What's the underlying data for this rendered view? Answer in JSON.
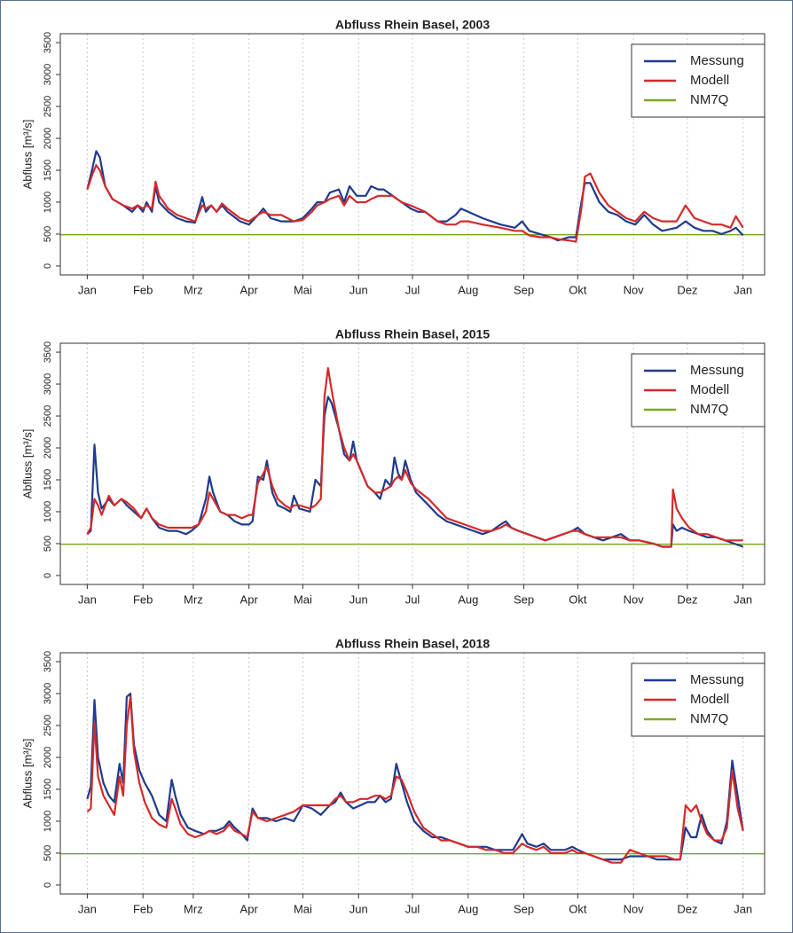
{
  "chart_data": [
    {
      "type": "line",
      "title": "Abfluss Rhein Basel, 2003",
      "ylabel": "Abfluss [m³/s]",
      "xlim": [
        -15,
        377
      ],
      "ylim": [
        -140,
        3640
      ],
      "xticks": [
        {
          "value": 0,
          "label": "Jan"
        },
        {
          "value": 31,
          "label": "Feb"
        },
        {
          "value": 59,
          "label": "Mrz"
        },
        {
          "value": 90,
          "label": "Apr"
        },
        {
          "value": 120,
          "label": "Mai"
        },
        {
          "value": 151,
          "label": "Jun"
        },
        {
          "value": 181,
          "label": "Jul"
        },
        {
          "value": 212,
          "label": "Aug"
        },
        {
          "value": 243,
          "label": "Sep"
        },
        {
          "value": 273,
          "label": "Okt"
        },
        {
          "value": 304,
          "label": "Nov"
        },
        {
          "value": 334,
          "label": "Dez"
        },
        {
          "value": 365,
          "label": "Jan"
        }
      ],
      "yticks": [
        0,
        500,
        1000,
        1500,
        2000,
        2500,
        3000,
        3500
      ],
      "grid": true,
      "legend": "top-right",
      "x": [
        0,
        3,
        5,
        7,
        10,
        14,
        20,
        25,
        28,
        31,
        33,
        36,
        38,
        40,
        45,
        50,
        55,
        60,
        64,
        66,
        69,
        72,
        75,
        78,
        85,
        90,
        95,
        98,
        102,
        108,
        115,
        120,
        125,
        128,
        132,
        135,
        140,
        143,
        146,
        150,
        155,
        158,
        162,
        165,
        170,
        175,
        180,
        184,
        188,
        195,
        200,
        205,
        208,
        212,
        220,
        230,
        238,
        242,
        246,
        252,
        258,
        262,
        268,
        272,
        275,
        277,
        280,
        285,
        290,
        295,
        300,
        305,
        310,
        315,
        320,
        328,
        333,
        338,
        343,
        348,
        353,
        358,
        361,
        365
      ],
      "series": [
        {
          "name": "Messung",
          "color": "#1f3b8c",
          "values": [
            1200,
            1550,
            1800,
            1700,
            1250,
            1050,
            950,
            850,
            950,
            850,
            1000,
            850,
            1250,
            1000,
            850,
            750,
            700,
            680,
            1080,
            850,
            950,
            850,
            950,
            850,
            700,
            650,
            800,
            900,
            750,
            700,
            700,
            750,
            900,
            1000,
            1000,
            1150,
            1200,
            1000,
            1250,
            1100,
            1100,
            1250,
            1200,
            1200,
            1100,
            1000,
            900,
            850,
            850,
            700,
            700,
            800,
            900,
            850,
            750,
            650,
            600,
            700,
            550,
            500,
            450,
            400,
            450,
            450,
            1000,
            1300,
            1300,
            1000,
            850,
            800,
            700,
            650,
            800,
            650,
            550,
            600,
            700,
            600,
            550,
            550,
            500,
            550,
            600,
            480
          ]
        },
        {
          "name": "Modell",
          "color": "#d42a2a",
          "values": [
            1200,
            1450,
            1580,
            1500,
            1250,
            1050,
            950,
            900,
            950,
            900,
            950,
            900,
            1320,
            1100,
            900,
            800,
            750,
            700,
            950,
            900,
            950,
            850,
            980,
            900,
            750,
            700,
            800,
            850,
            800,
            800,
            700,
            720,
            850,
            950,
            1000,
            1050,
            1100,
            950,
            1100,
            1000,
            1000,
            1050,
            1100,
            1100,
            1100,
            1000,
            950,
            900,
            850,
            700,
            650,
            650,
            700,
            700,
            650,
            600,
            550,
            550,
            480,
            450,
            450,
            420,
            400,
            380,
            900,
            1400,
            1450,
            1150,
            950,
            850,
            750,
            700,
            850,
            750,
            700,
            700,
            950,
            750,
            700,
            650,
            650,
            600,
            780,
            600
          ]
        }
      ],
      "hline": {
        "name": "NM7Q",
        "color": "#7aaa24",
        "value": 490
      }
    },
    {
      "type": "line",
      "title": "Abfluss Rhein Basel, 2015",
      "ylabel": "Abfluss [m³/s]",
      "xlim": [
        -15,
        377
      ],
      "ylim": [
        -140,
        3640
      ],
      "xticks": [
        {
          "value": 0,
          "label": "Jan"
        },
        {
          "value": 31,
          "label": "Feb"
        },
        {
          "value": 59,
          "label": "Mrz"
        },
        {
          "value": 90,
          "label": "Apr"
        },
        {
          "value": 120,
          "label": "Mai"
        },
        {
          "value": 151,
          "label": "Jun"
        },
        {
          "value": 181,
          "label": "Jul"
        },
        {
          "value": 212,
          "label": "Aug"
        },
        {
          "value": 243,
          "label": "Sep"
        },
        {
          "value": 273,
          "label": "Okt"
        },
        {
          "value": 304,
          "label": "Nov"
        },
        {
          "value": 334,
          "label": "Dez"
        },
        {
          "value": 365,
          "label": "Jan"
        }
      ],
      "yticks": [
        0,
        500,
        1000,
        1500,
        2000,
        2500,
        3000,
        3500
      ],
      "grid": true,
      "legend": "top-right",
      "x": [
        0,
        2,
        4,
        6,
        8,
        12,
        15,
        19,
        22,
        26,
        30,
        33,
        36,
        40,
        45,
        50,
        55,
        58,
        62,
        66,
        68,
        70,
        74,
        78,
        82,
        86,
        90,
        92,
        95,
        98,
        100,
        103,
        106,
        110,
        113,
        115,
        118,
        124,
        127,
        130,
        132,
        134,
        136,
        140,
        143,
        146,
        148,
        150,
        153,
        156,
        160,
        163,
        166,
        169,
        171,
        173,
        175,
        177,
        180,
        183,
        190,
        195,
        200,
        205,
        210,
        215,
        220,
        225,
        230,
        233,
        236,
        240,
        245,
        250,
        255,
        260,
        265,
        270,
        273,
        277,
        282,
        287,
        292,
        297,
        302,
        307,
        315,
        320,
        325,
        326,
        328,
        331,
        335,
        340,
        345,
        350,
        355,
        360,
        365
      ],
      "series": [
        {
          "name": "Messung",
          "color": "#1f3b8c",
          "values": [
            650,
            700,
            2050,
            1300,
            1050,
            1200,
            1100,
            1200,
            1100,
            1000,
            900,
            1050,
            900,
            750,
            700,
            700,
            650,
            700,
            800,
            1200,
            1550,
            1300,
            1000,
            950,
            850,
            800,
            800,
            850,
            1550,
            1500,
            1800,
            1300,
            1100,
            1050,
            1000,
            1250,
            1050,
            1000,
            1500,
            1400,
            2500,
            2800,
            2700,
            2300,
            1900,
            1800,
            2100,
            1800,
            1600,
            1400,
            1300,
            1200,
            1500,
            1400,
            1850,
            1600,
            1500,
            1800,
            1500,
            1300,
            1100,
            950,
            850,
            800,
            750,
            700,
            650,
            700,
            800,
            850,
            750,
            700,
            650,
            600,
            550,
            600,
            650,
            700,
            750,
            650,
            600,
            550,
            600,
            650,
            550,
            550,
            500,
            450,
            450,
            800,
            700,
            750,
            700,
            650,
            600,
            600,
            550,
            500,
            450
          ]
        },
        {
          "name": "Modell",
          "color": "#d42a2a",
          "values": [
            650,
            750,
            1200,
            1100,
            950,
            1250,
            1100,
            1200,
            1150,
            1050,
            900,
            1050,
            900,
            800,
            750,
            750,
            750,
            750,
            800,
            1000,
            1300,
            1200,
            1000,
            950,
            950,
            900,
            950,
            950,
            1450,
            1600,
            1700,
            1400,
            1200,
            1100,
            1050,
            1100,
            1100,
            1050,
            1100,
            1200,
            2800,
            3250,
            2900,
            2300,
            2000,
            1800,
            1900,
            1800,
            1600,
            1400,
            1300,
            1300,
            1350,
            1400,
            1500,
            1550,
            1500,
            1650,
            1450,
            1350,
            1200,
            1050,
            900,
            850,
            800,
            750,
            700,
            700,
            750,
            800,
            750,
            700,
            650,
            600,
            550,
            600,
            650,
            700,
            700,
            650,
            600,
            600,
            600,
            600,
            550,
            550,
            500,
            450,
            450,
            1350,
            1050,
            900,
            750,
            650,
            650,
            600,
            550,
            550,
            550
          ]
        }
      ],
      "hline": {
        "name": "NM7Q",
        "color": "#7aaa24",
        "value": 490
      }
    },
    {
      "type": "line",
      "title": "Abfluss Rhein Basel, 2018",
      "ylabel": "Abfluss [m³/s]",
      "xlim": [
        -15,
        377
      ],
      "ylim": [
        -140,
        3640
      ],
      "xticks": [
        {
          "value": 0,
          "label": "Jan"
        },
        {
          "value": 31,
          "label": "Feb"
        },
        {
          "value": 59,
          "label": "Mrz"
        },
        {
          "value": 90,
          "label": "Apr"
        },
        {
          "value": 120,
          "label": "Mai"
        },
        {
          "value": 151,
          "label": "Jun"
        },
        {
          "value": 181,
          "label": "Jul"
        },
        {
          "value": 212,
          "label": "Aug"
        },
        {
          "value": 243,
          "label": "Sep"
        },
        {
          "value": 273,
          "label": "Okt"
        },
        {
          "value": 304,
          "label": "Nov"
        },
        {
          "value": 334,
          "label": "Dez"
        },
        {
          "value": 365,
          "label": "Jan"
        }
      ],
      "yticks": [
        0,
        500,
        1000,
        1500,
        2000,
        2500,
        3000,
        3500
      ],
      "grid": true,
      "legend": "top-right",
      "x": [
        0,
        2,
        4,
        6,
        9,
        12,
        15,
        18,
        20,
        22,
        24,
        26,
        29,
        32,
        36,
        40,
        44,
        47,
        49,
        52,
        56,
        60,
        65,
        68,
        72,
        76,
        79,
        82,
        86,
        89,
        92,
        95,
        100,
        105,
        110,
        115,
        120,
        125,
        130,
        135,
        138,
        141,
        144,
        148,
        152,
        156,
        160,
        163,
        166,
        169,
        172,
        175,
        178,
        182,
        187,
        192,
        197,
        202,
        207,
        212,
        217,
        222,
        227,
        232,
        237,
        242,
        245,
        250,
        254,
        258,
        262,
        266,
        270,
        273,
        277,
        282,
        287,
        292,
        297,
        302,
        307,
        312,
        317,
        322,
        327,
        330,
        333,
        336,
        339,
        342,
        345,
        349,
        353,
        356,
        359,
        362,
        365
      ],
      "series": [
        {
          "name": "Messung",
          "color": "#1f3b8c",
          "values": [
            1350,
            1550,
            2900,
            2000,
            1600,
            1400,
            1300,
            1900,
            1600,
            2950,
            3000,
            2200,
            1800,
            1600,
            1400,
            1100,
            1000,
            1650,
            1400,
            1100,
            900,
            850,
            800,
            850,
            850,
            900,
            1000,
            900,
            800,
            700,
            1200,
            1050,
            1050,
            1000,
            1050,
            1000,
            1250,
            1200,
            1100,
            1250,
            1300,
            1450,
            1300,
            1200,
            1250,
            1300,
            1300,
            1400,
            1300,
            1350,
            1900,
            1600,
            1300,
            1000,
            850,
            750,
            750,
            700,
            650,
            600,
            600,
            600,
            550,
            550,
            550,
            800,
            650,
            600,
            650,
            550,
            550,
            550,
            600,
            550,
            500,
            450,
            400,
            400,
            400,
            450,
            450,
            450,
            400,
            400,
            400,
            400,
            900,
            750,
            750,
            1100,
            850,
            700,
            650,
            1000,
            1950,
            1400,
            850
          ]
        },
        {
          "name": "Modell",
          "color": "#d42a2a",
          "values": [
            1150,
            1200,
            2550,
            1700,
            1400,
            1250,
            1100,
            1700,
            1400,
            2500,
            2950,
            2100,
            1600,
            1300,
            1050,
            950,
            900,
            1350,
            1200,
            950,
            800,
            750,
            800,
            850,
            800,
            850,
            950,
            850,
            800,
            750,
            1150,
            1050,
            1000,
            1050,
            1100,
            1150,
            1250,
            1250,
            1250,
            1250,
            1350,
            1400,
            1300,
            1300,
            1350,
            1350,
            1400,
            1400,
            1350,
            1400,
            1700,
            1650,
            1450,
            1150,
            900,
            800,
            700,
            700,
            650,
            600,
            600,
            550,
            550,
            500,
            500,
            650,
            600,
            550,
            600,
            500,
            500,
            500,
            550,
            500,
            500,
            450,
            400,
            350,
            350,
            550,
            500,
            450,
            450,
            450,
            400,
            400,
            1250,
            1150,
            1250,
            1000,
            800,
            700,
            700,
            900,
            1800,
            1200,
            850
          ]
        }
      ],
      "hline": {
        "name": "NM7Q",
        "color": "#7aaa24",
        "value": 490
      }
    }
  ]
}
